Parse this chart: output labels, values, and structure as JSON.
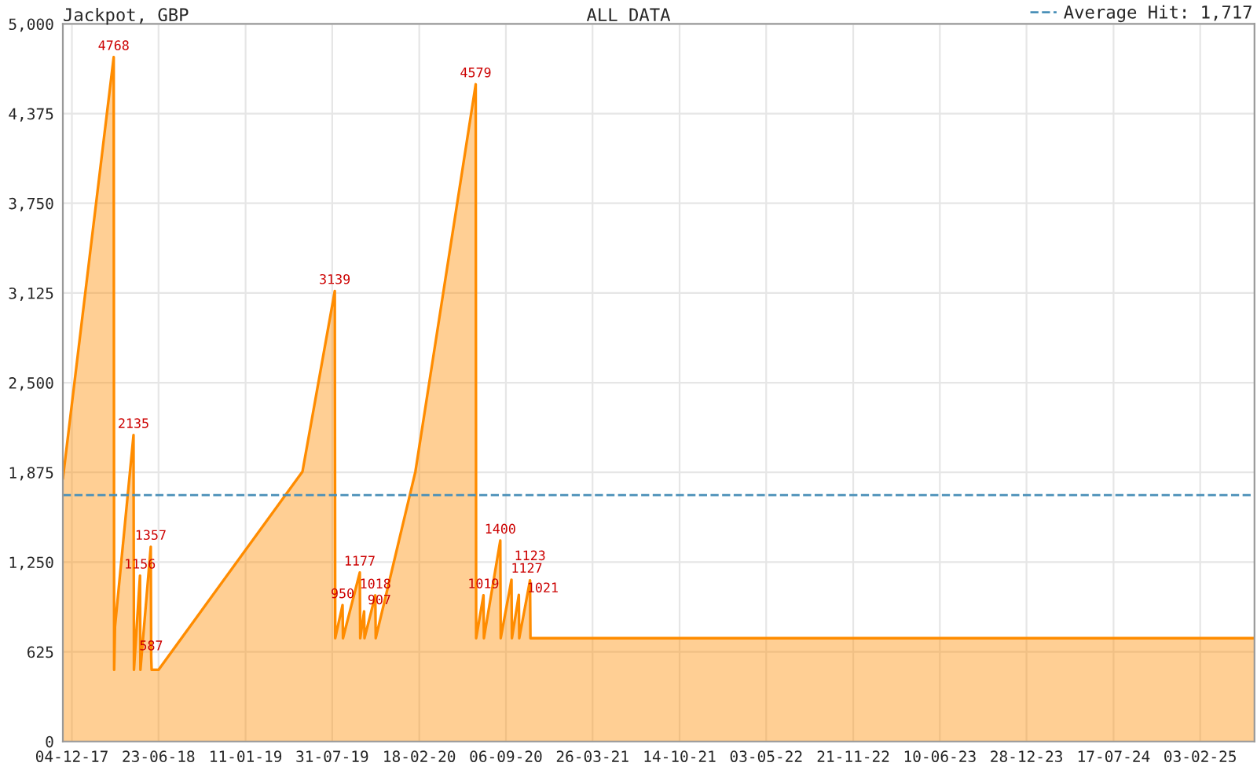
{
  "chart_data": {
    "type": "area",
    "title": "Jackpot, GBP",
    "subtitle": "ALL DATA",
    "x": [
      "2017-11-13",
      "2018-03-11",
      "2018-03-12",
      "2018-03-14",
      "2018-04-26",
      "2018-04-27",
      "2018-05-11",
      "2018-05-12",
      "2018-06-05",
      "2018-06-06",
      "2018-06-07",
      "2018-06-23",
      "2019-05-23",
      "2019-08-06",
      "2019-08-07",
      "2019-08-24",
      "2019-08-25",
      "2019-10-03",
      "2019-10-04",
      "2019-10-13",
      "2019-10-14",
      "2019-11-08",
      "2019-11-09",
      "2020-02-09",
      "2020-06-28",
      "2020-06-29",
      "2020-07-16",
      "2020-07-17",
      "2020-08-24",
      "2020-08-25",
      "2020-09-19",
      "2020-09-20",
      "2020-10-06",
      "2020-10-07",
      "2020-11-01",
      "2020-11-02",
      "2025-06-09"
    ],
    "series": [
      {
        "color": "#ff8c00",
        "values": [
          1830,
          4768,
          500,
          800,
          2135,
          500,
          1156,
          500,
          1357,
          587,
          500,
          500,
          1880,
          3139,
          720,
          950,
          720,
          1177,
          720,
          907,
          720,
          1018,
          720,
          1880,
          4579,
          720,
          1019,
          720,
          1400,
          720,
          1127,
          720,
          1021,
          720,
          1123,
          720,
          720
        ],
        "value_labels": [
          null,
          "4768",
          null,
          null,
          "2135",
          null,
          "1156",
          null,
          "1357",
          "587",
          null,
          null,
          null,
          "3139",
          null,
          "950",
          null,
          "1177",
          null,
          "907",
          null,
          "1018",
          null,
          null,
          "4579",
          null,
          "1019",
          null,
          "1400",
          null,
          "1127",
          null,
          "1021",
          null,
          "1123",
          null,
          null
        ]
      }
    ],
    "xlim": [
      "2017-11-13",
      "2025-06-09"
    ],
    "xticks": [
      {
        "value": "2017-12-04",
        "label": "04-12-17"
      },
      {
        "value": "2018-06-23",
        "label": "23-06-18"
      },
      {
        "value": "2019-01-11",
        "label": "11-01-19"
      },
      {
        "value": "2019-07-31",
        "label": "31-07-19"
      },
      {
        "value": "2020-02-18",
        "label": "18-02-20"
      },
      {
        "value": "2020-09-06",
        "label": "06-09-20"
      },
      {
        "value": "2021-03-26",
        "label": "26-03-21"
      },
      {
        "value": "2021-10-14",
        "label": "14-10-21"
      },
      {
        "value": "2022-05-03",
        "label": "03-05-22"
      },
      {
        "value": "2022-11-21",
        "label": "21-11-22"
      },
      {
        "value": "2023-06-10",
        "label": "10-06-23"
      },
      {
        "value": "2023-12-28",
        "label": "28-12-23"
      },
      {
        "value": "2024-07-17",
        "label": "17-07-24"
      },
      {
        "value": "2025-02-03",
        "label": "03-02-25"
      }
    ],
    "ylim": [
      0,
      5000
    ],
    "yticks": [
      0,
      625,
      {
        "value": 1250,
        "label": "1,250"
      },
      {
        "value": 1875,
        "label": "1,875"
      },
      {
        "value": 2500,
        "label": "2,500"
      },
      {
        "value": 3125,
        "label": "3,125"
      },
      {
        "value": 3750,
        "label": "3,750"
      },
      {
        "value": 4375,
        "label": "4,375"
      },
      {
        "value": 5000,
        "label": "5,000"
      }
    ],
    "ref_lines": [
      {
        "axis": "y",
        "value": 1717,
        "label": "Average Hit: 1,717",
        "color": "#4a90b8",
        "line_style": "dashed"
      }
    ],
    "grid": true,
    "legend": "top right"
  }
}
